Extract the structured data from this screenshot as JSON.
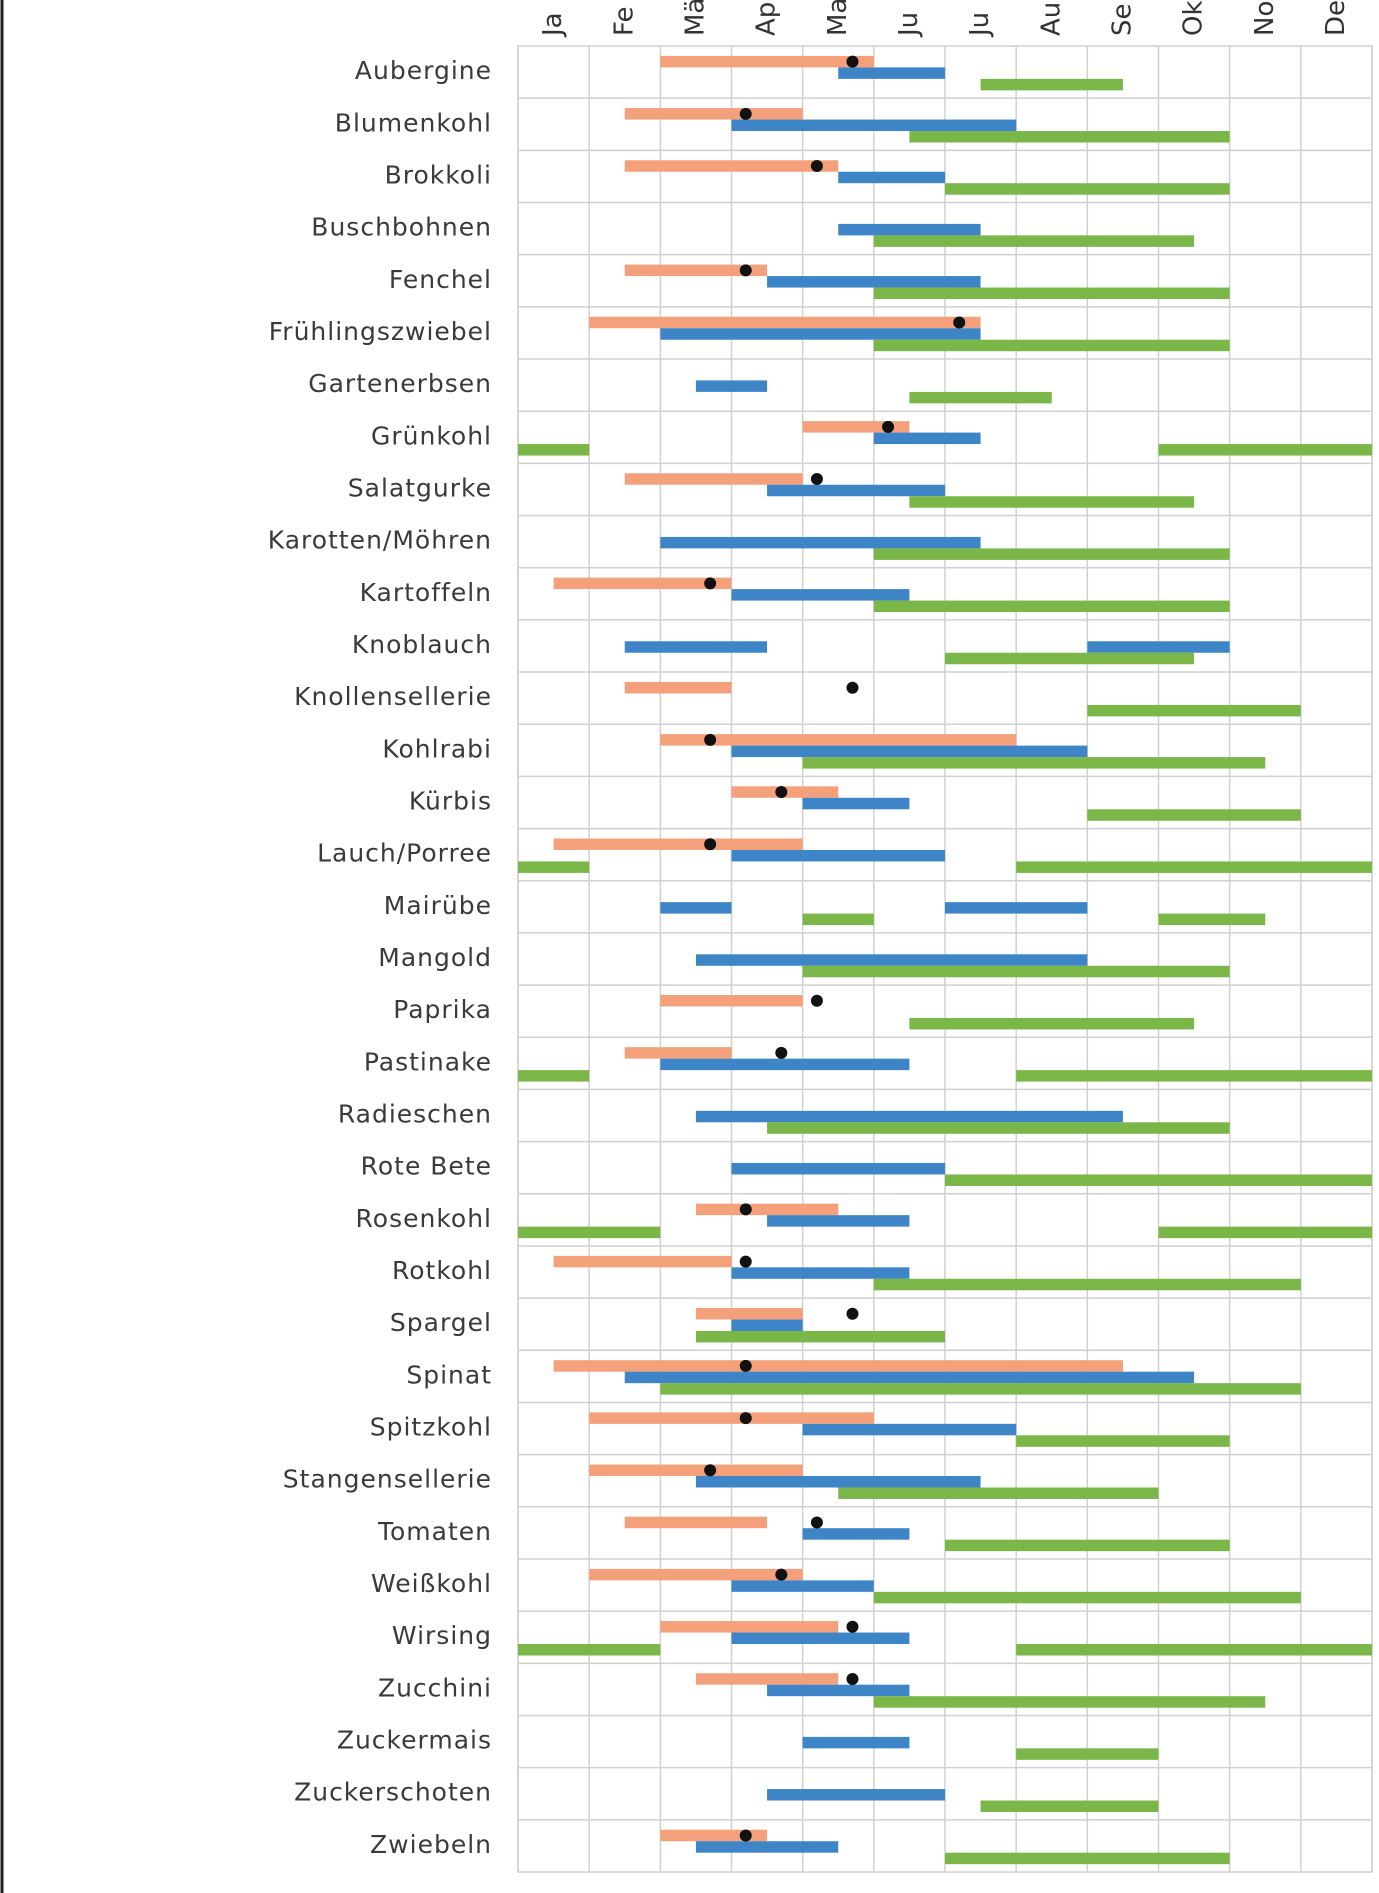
{
  "chart_data": {
    "type": "gantt",
    "categories": [
      "Aubergine",
      "Blumenkohl",
      "Brokkoli",
      "Buschbohnen",
      "Fenchel",
      "Frühlingszwiebel",
      "Gartenerbsen",
      "Grünkohl",
      "Salatgurke",
      "Karotten/Möhren",
      "Kartoffeln",
      "Knoblauch",
      "Knollensellerie",
      "Kohlrabi",
      "Kürbis",
      "Lauch/Porree",
      "Mairübe",
      "Mangold",
      "Paprika",
      "Pastinake",
      "Radieschen",
      "Rote Bete",
      "Rosenkohl",
      "Rotkohl",
      "Spargel",
      "Spinat",
      "Spitzkohl",
      "Stangensellerie",
      "Tomaten",
      "Weißkohl",
      "Wirsing",
      "Zucchini",
      "Zuckermais",
      "Zuckerschoten",
      "Zwiebeln"
    ],
    "months": [
      "Ja",
      "Fe",
      "Mä",
      "Ap",
      "Ma",
      "Ju",
      "Ju",
      "Au",
      "Se",
      "Ok",
      "No",
      "De"
    ],
    "xlim": [
      0,
      12
    ],
    "xticks": [
      0,
      1,
      2,
      3,
      4,
      5,
      6,
      7,
      8,
      9,
      10,
      11,
      12
    ],
    "grid": true,
    "series": [
      {
        "color": "#f4a07a",
        "values": [
          [
            [
              2,
              5
            ]
          ],
          [
            [
              1.5,
              4
            ]
          ],
          [
            [
              1.5,
              4.5
            ]
          ],
          null,
          [
            [
              1.5,
              3.5
            ]
          ],
          [
            [
              1,
              6.5
            ]
          ],
          null,
          [
            [
              4,
              5.5
            ]
          ],
          [
            [
              1.5,
              4
            ]
          ],
          null,
          [
            [
              0.5,
              3
            ]
          ],
          null,
          [
            [
              1.5,
              3
            ]
          ],
          [
            [
              2,
              7
            ]
          ],
          [
            [
              3,
              4.5
            ]
          ],
          [
            [
              0.5,
              4
            ]
          ],
          null,
          null,
          [
            [
              2,
              4
            ]
          ],
          [
            [
              1.5,
              3
            ]
          ],
          null,
          null,
          [
            [
              2.5,
              4.5
            ]
          ],
          [
            [
              0.5,
              3
            ]
          ],
          [
            [
              2.5,
              4
            ]
          ],
          [
            [
              0.5,
              8.5
            ]
          ],
          [
            [
              1,
              5
            ]
          ],
          [
            [
              1,
              4
            ]
          ],
          [
            [
              1.5,
              3.5
            ]
          ],
          [
            [
              1,
              4
            ]
          ],
          [
            [
              2,
              4.5
            ]
          ],
          [
            [
              2.5,
              4.5
            ]
          ],
          null,
          null,
          [
            [
              2,
              3.5
            ]
          ]
        ]
      },
      {
        "color": "#3d85c6",
        "values": [
          [
            [
              4.5,
              6
            ]
          ],
          [
            [
              3,
              7
            ]
          ],
          [
            [
              4.5,
              6
            ]
          ],
          [
            [
              4.5,
              6.5
            ]
          ],
          [
            [
              3.5,
              6.5
            ]
          ],
          [
            [
              2,
              6.5
            ]
          ],
          [
            [
              2.5,
              3.5
            ]
          ],
          [
            [
              5,
              6.5
            ]
          ],
          [
            [
              3.5,
              6
            ]
          ],
          [
            [
              2,
              6.5
            ]
          ],
          [
            [
              3,
              5.5
            ]
          ],
          [
            [
              1.5,
              3.5
            ],
            [
              8,
              10
            ]
          ],
          null,
          [
            [
              3,
              8
            ]
          ],
          [
            [
              4,
              5.5
            ]
          ],
          [
            [
              3,
              6
            ]
          ],
          [
            [
              2,
              3
            ],
            [
              6,
              8
            ]
          ],
          [
            [
              2.5,
              8
            ]
          ],
          null,
          [
            [
              2,
              5.5
            ]
          ],
          [
            [
              2.5,
              8.5
            ]
          ],
          [
            [
              3,
              6
            ]
          ],
          [
            [
              3.5,
              5.5
            ]
          ],
          [
            [
              3,
              5.5
            ]
          ],
          [
            [
              3,
              4
            ]
          ],
          [
            [
              1.5,
              9.5
            ]
          ],
          [
            [
              4,
              7
            ]
          ],
          [
            [
              2.5,
              6.5
            ]
          ],
          [
            [
              4,
              5.5
            ]
          ],
          [
            [
              3,
              5
            ]
          ],
          [
            [
              3,
              5.5
            ]
          ],
          [
            [
              3.5,
              5.5
            ]
          ],
          [
            [
              4,
              5.5
            ]
          ],
          [
            [
              3.5,
              6
            ]
          ],
          [
            [
              2.5,
              4.5
            ]
          ]
        ]
      },
      {
        "color": "#7ab648",
        "values": [
          [
            [
              6.5,
              8.5
            ]
          ],
          [
            [
              5.5,
              10
            ]
          ],
          [
            [
              6,
              10
            ]
          ],
          [
            [
              5,
              9.5
            ]
          ],
          [
            [
              5,
              10
            ]
          ],
          [
            [
              5,
              10
            ]
          ],
          [
            [
              5.5,
              7.5
            ]
          ],
          [
            [
              0,
              1
            ],
            [
              9,
              12
            ]
          ],
          [
            [
              5.5,
              9.5
            ]
          ],
          [
            [
              5,
              10
            ]
          ],
          [
            [
              5,
              10
            ]
          ],
          [
            [
              6,
              9.5
            ]
          ],
          [
            [
              8,
              11
            ]
          ],
          [
            [
              4,
              10.5
            ]
          ],
          [
            [
              8,
              11
            ]
          ],
          [
            [
              0,
              1
            ],
            [
              7,
              12
            ]
          ],
          [
            [
              4,
              5
            ],
            [
              9,
              10.5
            ]
          ],
          [
            [
              4,
              10
            ]
          ],
          [
            [
              5.5,
              9.5
            ]
          ],
          [
            [
              0,
              1
            ],
            [
              7,
              12
            ]
          ],
          [
            [
              3.5,
              10
            ]
          ],
          [
            [
              6,
              12
            ]
          ],
          [
            [
              0,
              2
            ],
            [
              9,
              12
            ]
          ],
          [
            [
              5,
              11
            ]
          ],
          [
            [
              2.5,
              6
            ]
          ],
          [
            [
              2,
              11
            ]
          ],
          [
            [
              7,
              10
            ]
          ],
          [
            [
              4.5,
              9
            ]
          ],
          [
            [
              6,
              10
            ]
          ],
          [
            [
              5,
              11
            ]
          ],
          [
            [
              0,
              2
            ],
            [
              7,
              12
            ]
          ],
          [
            [
              5,
              10.5
            ]
          ],
          [
            [
              7,
              9
            ]
          ],
          [
            [
              6.5,
              9
            ]
          ],
          [
            [
              6,
              10
            ]
          ]
        ]
      }
    ],
    "markers": {
      "color": "#111111",
      "values": [
        4.7,
        3.2,
        4.2,
        null,
        3.2,
        6.2,
        null,
        5.2,
        4.2,
        null,
        2.7,
        null,
        4.7,
        2.7,
        3.7,
        2.7,
        null,
        null,
        4.2,
        3.7,
        null,
        null,
        3.2,
        3.2,
        4.7,
        3.2,
        3.2,
        2.7,
        4.2,
        3.7,
        4.7,
        4.7,
        null,
        null,
        3.2
      ]
    }
  }
}
